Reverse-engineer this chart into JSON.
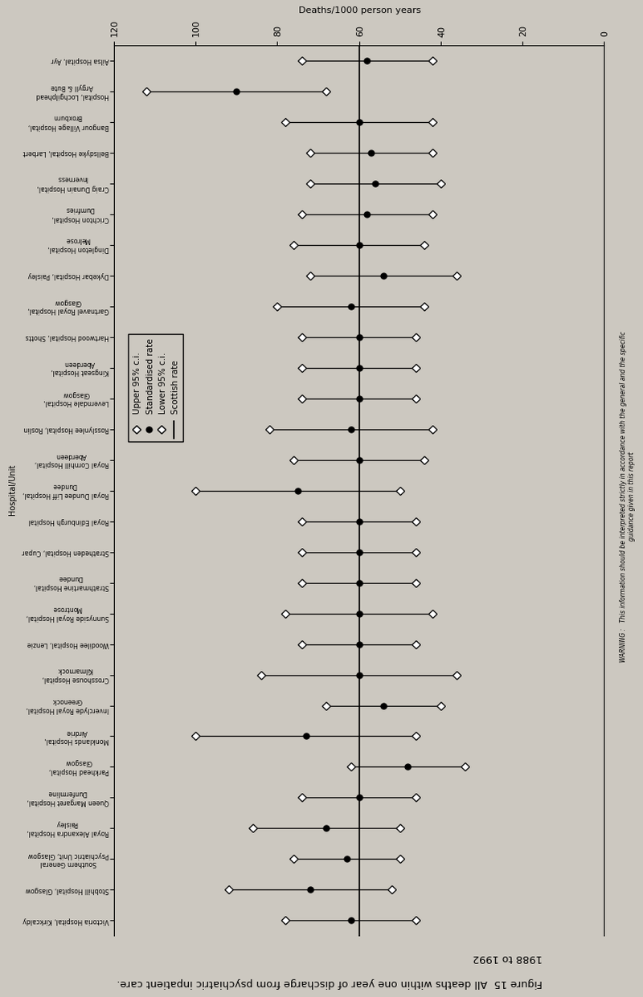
{
  "title_line1": "Figure 15  All deaths within one year of discharge from psychiatric inpatient care.",
  "title_line2": "1988 to 1992",
  "xlabel": "Deaths/1000 person years",
  "ylabel": "Hospital/Unit",
  "xlim": [
    0,
    120
  ],
  "xticks": [
    0,
    20,
    40,
    60,
    80,
    100,
    120
  ],
  "scottish_rate": 60,
  "background_color": "#ccc8c0",
  "hospitals": [
    "Victoria Hospital, Kirkcaldy",
    "Stobhill Hospital, Glasgow",
    "Southern General\nPsychiatric Unit, Glasgow",
    "Royal Alexandra Hospital,\nPaisley",
    "Queen Margaret Hospital,\nDunfermline",
    "Parkhead Hospital,\nGlasgow",
    "Monklands Hospital,\nAirdrie",
    "Inverclyde Royal Hospital,\nGreenock",
    "Crosshouse Hospital,\nKilmarnock",
    "Woodilee Hospital, Lenzie",
    "Sunnyside Royal Hospital,\nMontrose",
    "Strathmartine Hospital,\nDundee",
    "Stratheden Hospital, Cupar",
    "Royal Edinburgh Hospital",
    "Royal Dundee Liff Hospital,\nDundee",
    "Royal Cornhill Hospital,\nAberdeen",
    "Rosslynlee Hospital, Roslin",
    "Leverndale Hospital,\nGlasgow",
    "Kingseat Hospital,\nAberdeen",
    "Hartwood Hospital, Shotts",
    "Gartnavel Royal Hospital,\nGlasgow",
    "Dykebar Hospital, Paisley",
    "Dingleton Hospital,\nMelrose",
    "Crichton Hospital,\nDumfries",
    "Craig Dunain Hospital,\nInverness",
    "Bellsdyke Hospital, Larbert",
    "Bangour Village Hospital,\nBroxburn",
    "Hospital, Lochgilphead\nArgyll & Bute",
    "Ailsa Hospital, Ayr"
  ],
  "standardised": [
    62,
    72,
    63,
    68,
    60,
    48,
    73,
    54,
    60,
    60,
    60,
    60,
    60,
    60,
    75,
    60,
    62,
    60,
    60,
    60,
    62,
    54,
    60,
    58,
    56,
    57,
    60,
    90,
    58
  ],
  "upper_ci": [
    78,
    92,
    76,
    86,
    74,
    62,
    100,
    68,
    84,
    74,
    78,
    74,
    74,
    74,
    100,
    76,
    82,
    74,
    74,
    74,
    80,
    72,
    76,
    74,
    72,
    72,
    78,
    112,
    74
  ],
  "lower_ci": [
    46,
    52,
    50,
    50,
    46,
    34,
    46,
    40,
    36,
    46,
    42,
    46,
    46,
    46,
    50,
    44,
    42,
    46,
    46,
    46,
    44,
    36,
    44,
    42,
    40,
    42,
    42,
    68,
    42
  ],
  "warning_text1": "WARNING :   This information should be interpreted strictly in accordance with the general and the specific",
  "warning_text2": "guidance given in this report"
}
